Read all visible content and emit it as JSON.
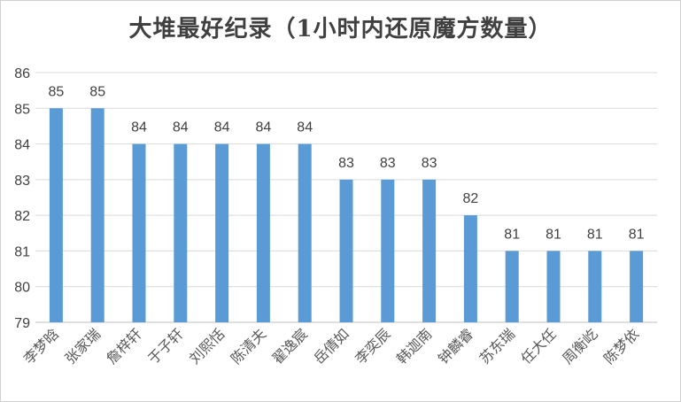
{
  "chart_data": {
    "type": "bar",
    "title": "大堆最好纪录（1小时内还原魔方数量）",
    "categories": [
      "李梦晗",
      "张家瑞",
      "詹梓轩",
      "于子轩",
      "刘熙恬",
      "陈清夫",
      "翟逸宸",
      "岳倩如",
      "李奕辰",
      "韩迦南",
      "钟麟睿",
      "苏东瑞",
      "任大任",
      "周衡屹",
      "陈梦依"
    ],
    "values": [
      85,
      85,
      84,
      84,
      84,
      84,
      84,
      83,
      83,
      83,
      82,
      81,
      81,
      81,
      81
    ],
    "ylim": [
      79,
      86
    ],
    "yticks": [
      79,
      80,
      81,
      82,
      83,
      84,
      85,
      86
    ],
    "grid": true,
    "legend": "none",
    "bar_color": "#5b9bd5",
    "xlabel": "",
    "ylabel": ""
  }
}
